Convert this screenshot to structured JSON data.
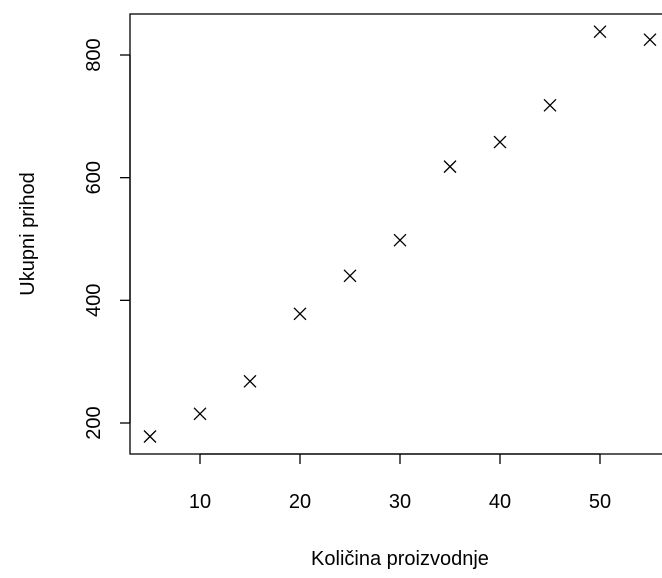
{
  "chart_data": {
    "type": "scatter",
    "title": "",
    "xlabel": "Količina proizvodnje",
    "ylabel": "Ukupni prihod",
    "marker": "x",
    "x": [
      5,
      10,
      15,
      20,
      25,
      30,
      35,
      40,
      45,
      50,
      55
    ],
    "y": [
      178,
      215,
      268,
      378,
      440,
      498,
      618,
      658,
      718,
      838,
      825
    ],
    "xticks": [
      10,
      20,
      30,
      40,
      50
    ],
    "yticks": [
      200,
      400,
      600,
      800
    ],
    "xlim": [
      2.7,
      57.5
    ],
    "ylim": [
      150,
      866
    ],
    "grid": false,
    "colors": {
      "marker": "#000000",
      "frame": "#000000"
    }
  }
}
